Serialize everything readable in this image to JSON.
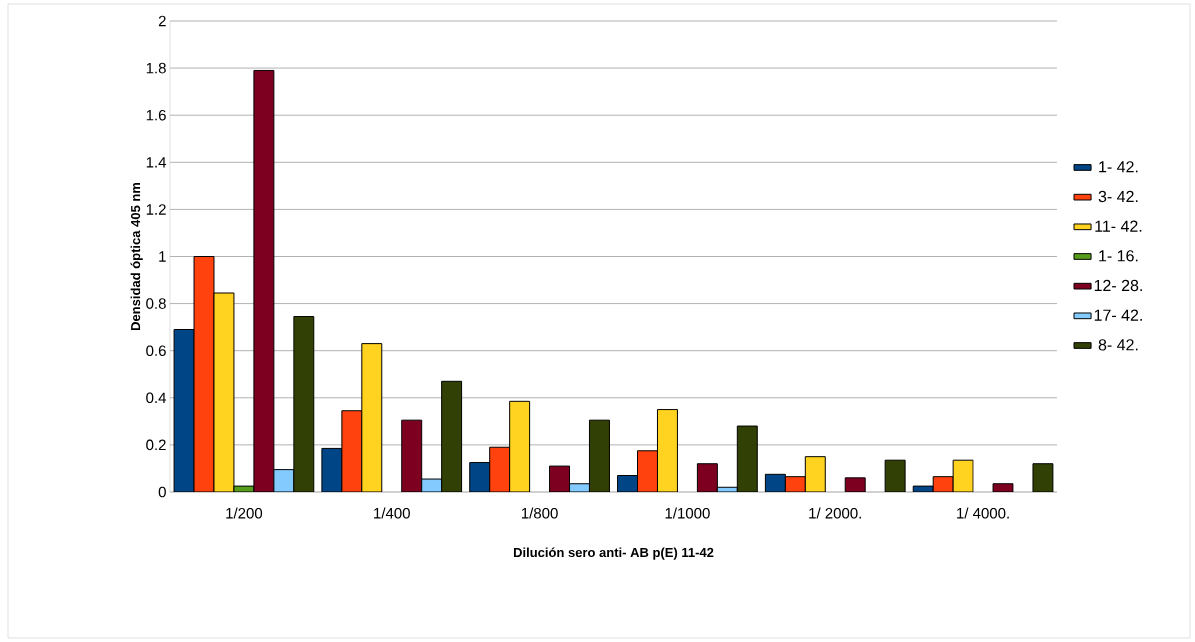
{
  "chart_data": {
    "type": "bar",
    "xlabel": "Dilución sero anti- AB p(E) 11-42",
    "ylabel": "Densidad óptica 405 nm",
    "categories": [
      "1/200",
      "1/400",
      "1/800",
      "1/1000",
      "1/ 2000.",
      "1/ 4000."
    ],
    "series": [
      {
        "name": "1- 42.",
        "color": "#004586",
        "values": [
          0.69,
          0.185,
          0.125,
          0.07,
          0.075,
          0.025
        ]
      },
      {
        "name": "3- 42.",
        "color": "#ff420e",
        "values": [
          1.0,
          0.345,
          0.19,
          0.175,
          0.065,
          0.065
        ]
      },
      {
        "name": "11- 42.",
        "color": "#ffd320",
        "values": [
          0.845,
          0.63,
          0.385,
          0.35,
          0.15,
          0.135
        ]
      },
      {
        "name": "1- 16.",
        "color": "#579d1c",
        "values": [
          0.025,
          null,
          null,
          null,
          null,
          null
        ]
      },
      {
        "name": "12- 28.",
        "color": "#7e0021",
        "values": [
          1.79,
          0.305,
          0.11,
          0.12,
          0.06,
          0.035
        ]
      },
      {
        "name": "17- 42.",
        "color": "#83caff",
        "values": [
          0.095,
          0.055,
          0.035,
          0.02,
          null,
          null
        ]
      },
      {
        "name": "8- 42.",
        "color": "#314004",
        "values": [
          0.745,
          0.47,
          0.305,
          0.28,
          0.135,
          0.12
        ]
      }
    ],
    "ylim": [
      0,
      2
    ],
    "yticks": [
      0,
      0.2,
      0.4,
      0.6,
      0.8,
      1,
      1.2,
      1.4,
      1.6,
      1.8,
      2
    ],
    "grid": "y",
    "legend": "right"
  }
}
